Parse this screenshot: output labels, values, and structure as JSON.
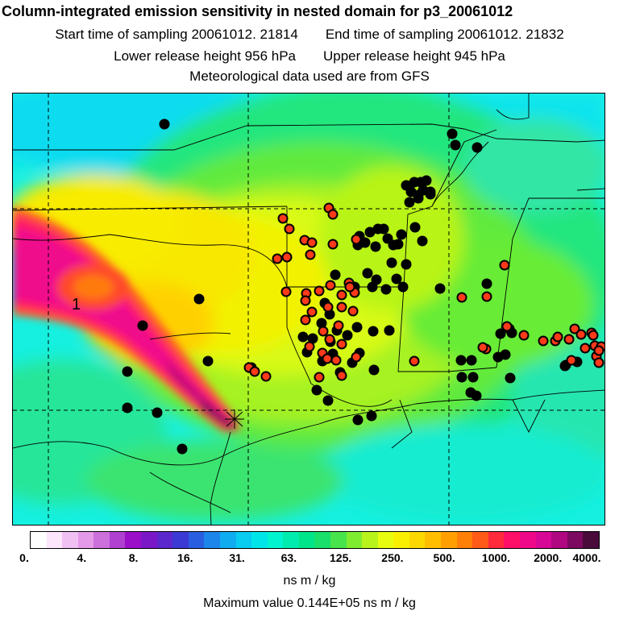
{
  "header": {
    "title": "Column-integrated emission sensitivity in nested domain for p3_20061012",
    "start_label": "Start time of sampling 20061012. 21814",
    "end_label": "End time of sampling 20061012. 21832",
    "lower_label": "Lower release height  956 hPa",
    "upper_label": "Upper release height  945 hPa",
    "met_label": "Meteorological data used are from GFS"
  },
  "map": {
    "plume_label": "1",
    "release_marker": "release-point-cross"
  },
  "colorbar": {
    "tick_labels": [
      "0.",
      "4.",
      "8.",
      "16.",
      "31.",
      "63.",
      "125.",
      "250.",
      "500.",
      "1000.",
      "2000.",
      "4000."
    ],
    "colors": [
      "#ffffff",
      "#fbe6fb",
      "#f0c0f2",
      "#e49ae8",
      "#cc70dc",
      "#b040d0",
      "#9a10c8",
      "#7a18c8",
      "#5a28cc",
      "#3c3ad4",
      "#2a5ee0",
      "#1c86ea",
      "#10acf0",
      "#08ccf0",
      "#00e6e8",
      "#00f4d0",
      "#00ecae",
      "#00e48a",
      "#18e06a",
      "#48e44c",
      "#80ec30",
      "#b8f41c",
      "#e8fc10",
      "#f8f000",
      "#fcd800",
      "#ffbe00",
      "#ffa000",
      "#ff8008",
      "#ff5a18",
      "#ff2a3c",
      "#ff1068",
      "#f0088a",
      "#d80896",
      "#b00880",
      "#7c0a60",
      "#4a0a3a"
    ]
  },
  "units": "ns m / kg",
  "max_value_label": "Maximum value  0.144E+05 ns m / kg"
}
